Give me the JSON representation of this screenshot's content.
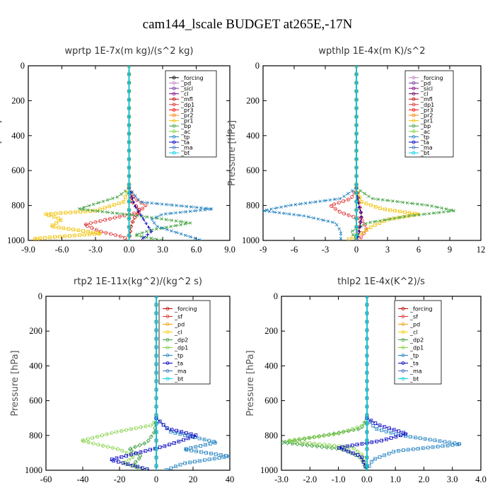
{
  "title": "cam144_lscale  BUDGET at265E,-17N",
  "chart_data": [
    {
      "type": "line",
      "title": "wprtp  1E-7x(m kg)/(s^2 kg)",
      "ylabel": "Pressure [hPa]",
      "xlim": [
        -9,
        9
      ],
      "ylim": [
        1000,
        0
      ],
      "xticks": [
        "-9.0",
        "-6.0",
        "-3.0",
        "0.0",
        "3.0",
        "6.0",
        "9.0"
      ],
      "yticks": [
        "0",
        "200",
        "400",
        "600",
        "800",
        "1000"
      ],
      "legend_position": "top-right",
      "series": [
        {
          "name": "_forcing",
          "color": "#000000",
          "y": [
            0,
            1000
          ],
          "x": [
            0,
            0
          ]
        },
        {
          "name": "_pd",
          "color": "#c080c0",
          "y": [
            0,
            1000
          ],
          "x": [
            0,
            0
          ]
        },
        {
          "name": "_sicl",
          "color": "#7030a0",
          "y": [
            0,
            1000
          ],
          "x": [
            0,
            0
          ]
        },
        {
          "name": "_cl",
          "color": "#800080",
          "y": [
            0,
            1000
          ],
          "x": [
            0,
            0
          ]
        },
        {
          "name": "_mfl",
          "color": "#c00000",
          "y": [
            700,
            780,
            830,
            870,
            910,
            950,
            1000
          ],
          "x": [
            0,
            0.3,
            1.0,
            0.5,
            0.2,
            0.1,
            0
          ]
        },
        {
          "name": "_dp1",
          "color": "#e03030",
          "y": [
            700,
            760,
            800,
            840,
            880,
            910,
            950,
            980,
            1000
          ],
          "x": [
            0,
            0.5,
            1.5,
            0.8,
            -2.0,
            -4.0,
            -2.5,
            -0.5,
            0
          ]
        },
        {
          "name": "_pr3",
          "color": "#ff0000",
          "y": [
            0,
            1000
          ],
          "x": [
            0,
            0
          ]
        },
        {
          "name": "_pr2",
          "color": "#ff8000",
          "y": [
            0,
            1000
          ],
          "x": [
            0,
            0
          ]
        },
        {
          "name": "_pr1",
          "color": "#f0c000",
          "y": [
            700,
            780,
            830,
            850,
            880,
            920,
            960,
            990,
            1000
          ],
          "x": [
            0,
            -0.5,
            -3.0,
            -7.5,
            -6.0,
            -7.0,
            -2.5,
            -8.5,
            -8.0
          ]
        },
        {
          "name": "_bp",
          "color": "#40a040",
          "y": [
            700,
            750,
            790,
            820,
            860,
            900,
            940,
            970,
            1000
          ],
          "x": [
            0,
            -1.0,
            -3.0,
            -4.5,
            1.0,
            5.5,
            2.0,
            0.5,
            3.0
          ]
        },
        {
          "name": "_ac",
          "color": "#80d040",
          "y": [
            0,
            1000
          ],
          "x": [
            0,
            0
          ]
        },
        {
          "name": "_tp",
          "color": "#2080c0",
          "y": [
            700,
            780,
            820,
            850,
            880,
            920,
            960,
            1000
          ],
          "x": [
            0,
            1.0,
            7.5,
            3.0,
            2.0,
            2.5,
            4.5,
            6.5
          ]
        },
        {
          "name": "_ta",
          "color": "#0000c0",
          "y": [
            700,
            800,
            850,
            900,
            950,
            1000
          ],
          "x": [
            0,
            0.5,
            1.0,
            1.5,
            2.0,
            1.0
          ]
        },
        {
          "name": "_ma",
          "color": "#4070c0",
          "y": [
            0,
            1000
          ],
          "x": [
            0,
            0
          ]
        },
        {
          "name": "_bt",
          "color": "#00d0e0",
          "y": [
            0,
            1000
          ],
          "x": [
            0,
            0
          ]
        }
      ]
    },
    {
      "type": "line",
      "title": "wpthlp  1E-4x(m K)/s^2",
      "ylabel": "Pressure [hPa]",
      "xlim": [
        -9,
        12
      ],
      "ylim": [
        1000,
        0
      ],
      "xticks": [
        "-9",
        "-6",
        "-3",
        "0",
        "3",
        "6",
        "9",
        "12"
      ],
      "yticks": [
        "0",
        "200",
        "400",
        "600",
        "800",
        "1000"
      ],
      "legend_position": "top-right",
      "series": [
        {
          "name": "_forcing",
          "color": "#c080c0",
          "y": [
            0,
            1000
          ],
          "x": [
            0,
            0
          ]
        },
        {
          "name": "_pd",
          "color": "#7030a0",
          "y": [
            0,
            1000
          ],
          "x": [
            0,
            0
          ]
        },
        {
          "name": "_sicl",
          "color": "#800080",
          "y": [
            0,
            1000
          ],
          "x": [
            0,
            0
          ]
        },
        {
          "name": "_cl",
          "color": "#600060",
          "y": [
            0,
            1000
          ],
          "x": [
            0,
            0
          ]
        },
        {
          "name": "_mfl",
          "color": "#c00000",
          "y": [
            700,
            800,
            860,
            920,
            1000
          ],
          "x": [
            0,
            0.3,
            0.5,
            0.3,
            0
          ]
        },
        {
          "name": "_dp1",
          "color": "#e03030",
          "y": [
            700,
            760,
            800,
            840,
            880,
            930,
            980,
            1000
          ],
          "x": [
            0,
            -0.5,
            -2.5,
            -1.5,
            0.5,
            1.0,
            0.5,
            0
          ]
        },
        {
          "name": "_pr3",
          "color": "#ff0000",
          "y": [
            0,
            1000
          ],
          "x": [
            0,
            0
          ]
        },
        {
          "name": "_pr2",
          "color": "#ff8000",
          "y": [
            0,
            1000
          ],
          "x": [
            0,
            0
          ]
        },
        {
          "name": "_pr1",
          "color": "#f0c000",
          "y": [
            700,
            780,
            820,
            850,
            880,
            920,
            960,
            1000
          ],
          "x": [
            0,
            0.5,
            2.5,
            6.0,
            3.0,
            1.5,
            0.5,
            -1.0
          ]
        },
        {
          "name": "_bp",
          "color": "#40a040",
          "y": [
            700,
            760,
            800,
            830,
            860,
            900,
            950,
            1000
          ],
          "x": [
            0,
            1.5,
            7.0,
            9.5,
            5.0,
            1.0,
            -0.5,
            0
          ]
        },
        {
          "name": "_ac",
          "color": "#80d040",
          "y": [
            0,
            1000
          ],
          "x": [
            0,
            0
          ]
        },
        {
          "name": "_tp",
          "color": "#2080c0",
          "y": [
            700,
            760,
            800,
            830,
            860,
            900,
            950,
            1000
          ],
          "x": [
            0,
            -1.5,
            -6.5,
            -9.0,
            -5.0,
            -2.0,
            -1.5,
            -1.5
          ]
        },
        {
          "name": "_ta",
          "color": "#0000c0",
          "y": [
            700,
            800,
            850,
            900,
            950,
            1000
          ],
          "x": [
            0,
            0.2,
            0.5,
            0.4,
            0.3,
            0
          ]
        },
        {
          "name": "_ma",
          "color": "#4070c0",
          "y": [
            0,
            1000
          ],
          "x": [
            0,
            0
          ]
        },
        {
          "name": "_bt",
          "color": "#00d0e0",
          "y": [
            0,
            1000
          ],
          "x": [
            0,
            0
          ]
        }
      ]
    },
    {
      "type": "line",
      "title": "rtp2  1E-11x(kg^2)/(kg^2 s)",
      "ylabel": "Pressure [hPa]",
      "xlim": [
        -60,
        40
      ],
      "ylim": [
        1000,
        0
      ],
      "xticks": [
        "-60",
        "-40",
        "-20",
        "0",
        "20",
        "40"
      ],
      "yticks": [
        "0",
        "200",
        "400",
        "600",
        "800",
        "1000"
      ],
      "legend_position": "top-right",
      "series": [
        {
          "name": "_forcing",
          "color": "#c00000",
          "y": [
            0,
            1000
          ],
          "x": [
            0,
            0
          ]
        },
        {
          "name": "_sf",
          "color": "#e03030",
          "y": [
            0,
            1000
          ],
          "x": [
            0,
            0
          ]
        },
        {
          "name": "_pd",
          "color": "#f0a000",
          "y": [
            0,
            1000
          ],
          "x": [
            0,
            0
          ]
        },
        {
          "name": "_cl",
          "color": "#f0d000",
          "y": [
            0,
            1000
          ],
          "x": [
            0,
            0
          ]
        },
        {
          "name": "_dp2",
          "color": "#40a040",
          "y": [
            700,
            780,
            840,
            880,
            920,
            960,
            1000
          ],
          "x": [
            0,
            -1,
            -5,
            -15,
            -8,
            -12,
            -10
          ]
        },
        {
          "name": "_dp1",
          "color": "#80d040",
          "y": [
            700,
            740,
            780,
            830,
            880,
            920,
            960,
            1000
          ],
          "x": [
            0,
            -2,
            -22,
            -41,
            -20,
            -12,
            -18,
            -5
          ]
        },
        {
          "name": "_tp",
          "color": "#2080c0",
          "y": [
            700,
            780,
            840,
            880,
            920,
            960,
            1000
          ],
          "x": [
            0,
            8,
            33,
            15,
            40,
            15,
            5
          ]
        },
        {
          "name": "_ta",
          "color": "#0000c0",
          "y": [
            700,
            760,
            800,
            860,
            900,
            940,
            980,
            1000
          ],
          "x": [
            0,
            6,
            22,
            5,
            -10,
            -25,
            -10,
            -3
          ]
        },
        {
          "name": "_ma",
          "color": "#4070c0",
          "y": [
            0,
            1000
          ],
          "x": [
            0,
            0
          ]
        },
        {
          "name": "_bt",
          "color": "#00d0e0",
          "y": [
            0,
            1000
          ],
          "x": [
            0,
            0
          ]
        }
      ]
    },
    {
      "type": "line",
      "title": "thlp2  1E-4x(K^2)/s",
      "ylabel": "Pressure [hPa]",
      "xlim": [
        -3,
        4
      ],
      "ylim": [
        1000,
        0
      ],
      "xticks": [
        "-3.0",
        "-2.0",
        "-1.0",
        "0.0",
        "1.0",
        "2.0",
        "3.0",
        "4.0"
      ],
      "yticks": [
        "0",
        "200",
        "400",
        "600",
        "800",
        "1000"
      ],
      "legend_position": "top-right",
      "series": [
        {
          "name": "_forcing",
          "color": "#c00000",
          "y": [
            0,
            1000
          ],
          "x": [
            0,
            0
          ]
        },
        {
          "name": "_sf",
          "color": "#e03030",
          "y": [
            0,
            1000
          ],
          "x": [
            0,
            0
          ]
        },
        {
          "name": "_pd",
          "color": "#f0a000",
          "y": [
            0,
            1000
          ],
          "x": [
            0,
            0
          ]
        },
        {
          "name": "_cl",
          "color": "#f0d000",
          "y": [
            0,
            1000
          ],
          "x": [
            0,
            0
          ]
        },
        {
          "name": "_dp2",
          "color": "#40a040",
          "y": [
            700,
            760,
            800,
            840,
            880,
            930,
            1000
          ],
          "x": [
            0,
            -0.2,
            -1.5,
            -3.0,
            -0.8,
            -0.2,
            0
          ]
        },
        {
          "name": "_dp1",
          "color": "#80d040",
          "y": [
            700,
            740,
            790,
            830,
            870,
            920,
            1000
          ],
          "x": [
            0,
            -0.1,
            -1.0,
            -2.8,
            -0.5,
            -0.1,
            0
          ]
        },
        {
          "name": "_tp",
          "color": "#2080c0",
          "y": [
            700,
            760,
            800,
            850,
            890,
            940,
            1000
          ],
          "x": [
            0,
            0.3,
            1.2,
            3.3,
            1.0,
            0.2,
            0
          ]
        },
        {
          "name": "_ta",
          "color": "#0000c0",
          "y": [
            700,
            740,
            790,
            830,
            870,
            920,
            1000
          ],
          "x": [
            0,
            0.4,
            1.4,
            0.5,
            -1.0,
            -0.2,
            0
          ]
        },
        {
          "name": "_ma",
          "color": "#4070c0",
          "y": [
            0,
            1000
          ],
          "x": [
            0,
            0
          ]
        },
        {
          "name": "_bt",
          "color": "#00d0e0",
          "y": [
            0,
            1000
          ],
          "x": [
            0,
            0
          ]
        }
      ]
    }
  ]
}
